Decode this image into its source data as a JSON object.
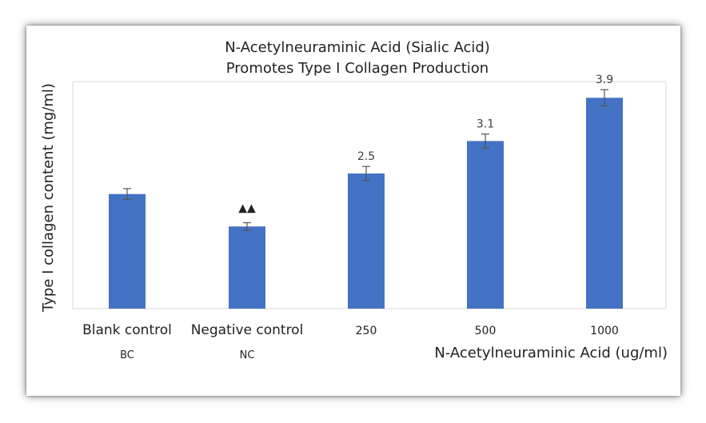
{
  "chart_data": {
    "type": "bar",
    "title": [
      "N-Acetylneuraminic Acid (Sialic Acid)",
      "Promotes Type I Collagen Production"
    ],
    "xlabel": "N-Acetylneuraminic Acid (ug/ml)",
    "ylabel": "Type I collagen content (mg/ml)",
    "categories": [
      "Blank control",
      "Negative control",
      "250",
      "500",
      "1000"
    ],
    "sub_labels": [
      "BC",
      "NC",
      "",
      "",
      ""
    ],
    "values": [
      2.12,
      1.52,
      2.5,
      3.1,
      3.9
    ],
    "error": [
      0.1,
      0.07,
      0.13,
      0.13,
      0.15
    ],
    "data_labels": [
      "",
      "",
      "2.5",
      "3.1",
      "3.9"
    ],
    "markers": [
      "",
      "▲▲",
      "",
      "",
      ""
    ],
    "ylim": [
      0,
      4.2
    ],
    "grid": false,
    "bar_color": "#4472C4"
  }
}
